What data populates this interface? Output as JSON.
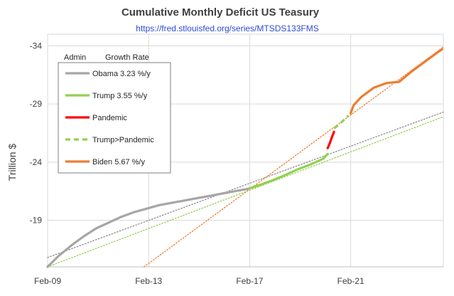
{
  "chart_data": {
    "type": "line",
    "title": "Cumulative Monthly Deficit US Teasury",
    "subtitle": "https://fred.stlouisfed.org/series/MTSDS133FMS",
    "ylabel": "Trillion $",
    "xlabel": "",
    "ylim": [
      -15,
      -35
    ],
    "xlim": [
      2009.083,
      2024.75
    ],
    "y_axis_reversed": true,
    "grid": "vertical and horizontal major gridlines",
    "x_ticks": [
      {
        "label": "Feb-09",
        "value": 2009.083
      },
      {
        "label": "Feb-13",
        "value": 2013.083
      },
      {
        "label": "Feb-17",
        "value": 2017.083
      },
      {
        "label": "Feb-21",
        "value": 2021.083
      }
    ],
    "y_ticks": [
      {
        "label": "-19",
        "value": -19
      },
      {
        "label": "-24",
        "value": -24
      },
      {
        "label": "-29",
        "value": -29
      },
      {
        "label": "-34",
        "value": -34
      }
    ],
    "legend_headers": [
      "Admin",
      "Growth Rate"
    ],
    "legend_position": "top-left",
    "series": [
      {
        "name": "Obama 3.23 %/y",
        "color": "#a6a6a6",
        "style": "solid-thick",
        "x": [
          2009.08,
          2009.5,
          2010.0,
          2010.5,
          2011.0,
          2011.5,
          2012.0,
          2012.5,
          2013.0,
          2013.5,
          2014.0,
          2014.5,
          2015.0,
          2015.5,
          2016.0,
          2016.5,
          2017.0,
          2017.08
        ],
        "y": [
          -15.0,
          -15.9,
          -16.8,
          -17.6,
          -18.3,
          -18.8,
          -19.3,
          -19.7,
          -20.0,
          -20.3,
          -20.5,
          -20.7,
          -20.9,
          -21.1,
          -21.3,
          -21.5,
          -21.7,
          -21.75
        ]
      },
      {
        "name": "Trump 3.55 %/y",
        "color": "#92d050",
        "style": "solid-thick",
        "x": [
          2017.08,
          2017.5,
          2018.0,
          2018.5,
          2019.0,
          2019.5,
          2020.0,
          2020.17
        ],
        "y": [
          -21.75,
          -22.05,
          -22.45,
          -22.9,
          -23.4,
          -23.8,
          -24.3,
          -24.7
        ]
      },
      {
        "name": "Pandemic",
        "color": "#ff0000",
        "style": "solid-thick",
        "x": [
          2020.17,
          2020.25,
          2020.33,
          2020.42
        ],
        "y": [
          -25.2,
          -25.6,
          -26.1,
          -26.6
        ]
      },
      {
        "name": "Trump>Pandemic",
        "color": "#92d050",
        "style": "dashed-thick",
        "x": [
          2020.42,
          2020.6,
          2020.8,
          2021.0
        ],
        "y": [
          -26.9,
          -27.2,
          -27.6,
          -28.0
        ]
      },
      {
        "name": "Biden 5.67 %/y",
        "color": "#ed7d31",
        "style": "solid-thick",
        "x": [
          2021.08,
          2021.2,
          2021.5,
          2022.0,
          2022.5,
          2023.0,
          2023.5,
          2024.0,
          2024.5,
          2024.7
        ],
        "y": [
          -28.2,
          -28.9,
          -29.6,
          -30.4,
          -30.8,
          -30.9,
          -31.8,
          -32.6,
          -33.4,
          -33.7
        ]
      }
    ],
    "trendlines": [
      {
        "color": "#8c8c8c",
        "style": "dotted",
        "x": [
          2009.083,
          2024.75
        ],
        "y": [
          -15.8,
          -28.3
        ]
      },
      {
        "color": "#92d050",
        "style": "dotted",
        "x": [
          2009.083,
          2024.75
        ],
        "y": [
          -15.0,
          -27.9
        ]
      },
      {
        "color": "#ed7d31",
        "style": "dotted",
        "x": [
          2012.9,
          2024.75
        ],
        "y": [
          -15.0,
          -33.9
        ]
      }
    ]
  }
}
